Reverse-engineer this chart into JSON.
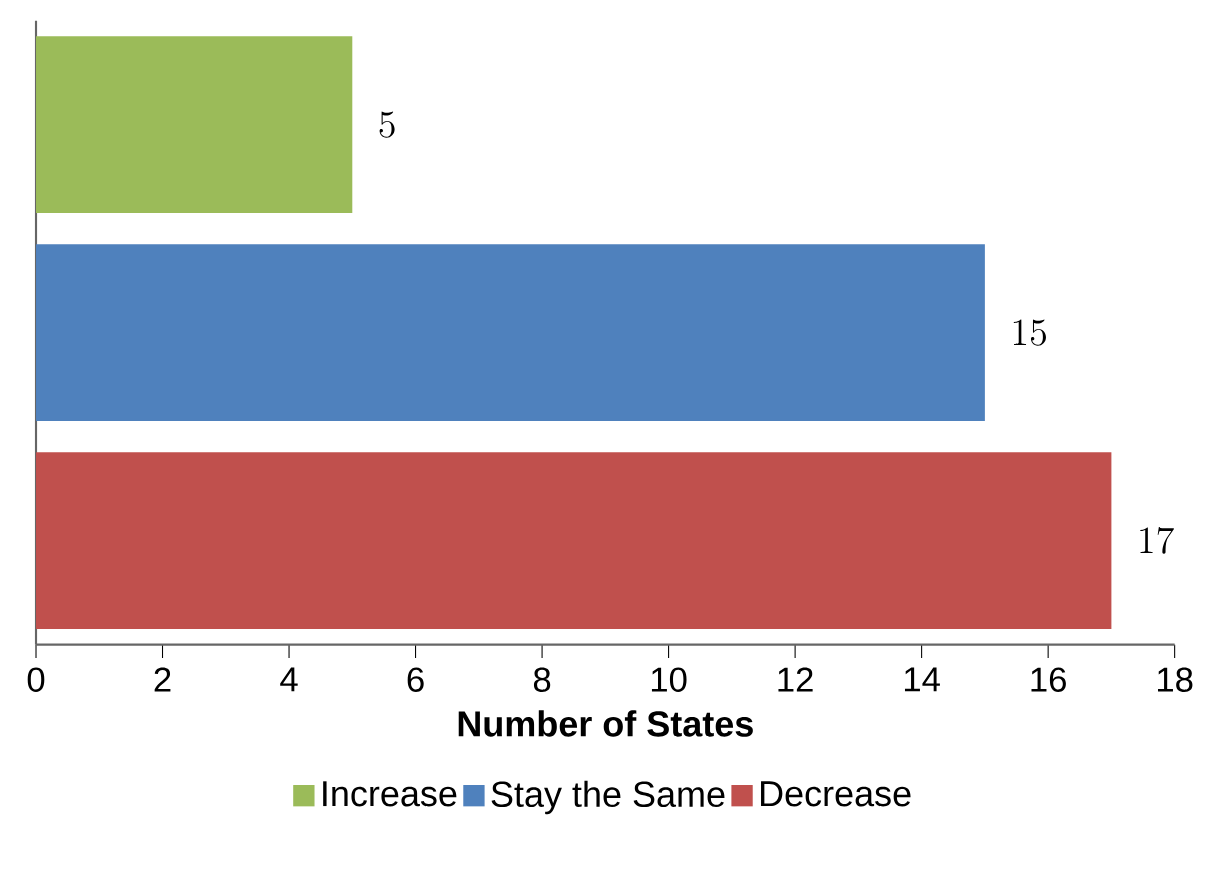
{
  "chart_data": {
    "type": "bar",
    "orientation": "horizontal",
    "xlabel": "Number of States",
    "categories": [
      null,
      null,
      null
    ],
    "series": [
      {
        "name": "Increase",
        "color": "#9bbb59",
        "values": [
          5,
          null,
          null
        ]
      },
      {
        "name": "Stay the Same",
        "color": "#4f81bd",
        "values": [
          null,
          15,
          null
        ]
      },
      {
        "name": "Decrease",
        "color": "#c0504d",
        "values": [
          null,
          null,
          17
        ]
      }
    ],
    "xlim": [
      0,
      18
    ],
    "xticks": [
      0,
      2,
      4,
      6,
      8,
      10,
      12,
      14,
      16,
      18
    ],
    "data_labels": true,
    "legend": "bottom",
    "grid": false
  }
}
